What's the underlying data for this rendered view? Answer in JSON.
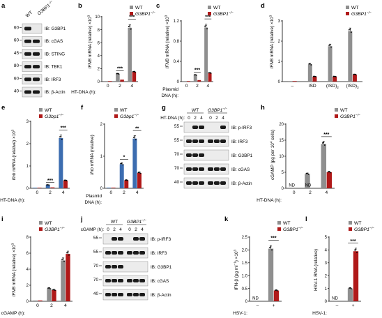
{
  "colors": {
    "wt": "#8f8f8f",
    "ko": "#b01919",
    "blue": "#3c6db0",
    "darkred": "#b01919",
    "axis": "#000000"
  },
  "legend": {
    "wt": "WT",
    "ko": "G3BP1",
    "ko_mouse": "G3bp1"
  },
  "sup": "−/−",
  "sig": {
    "s1": "*",
    "s2": "**",
    "s3": "***"
  },
  "nd": "ND",
  "panels": {
    "a": {
      "letter": "a",
      "header_wt": "WT",
      "header_ko": "G3BP1",
      "rows": [
        {
          "mw": "60",
          "label": "IB: G3BP1"
        },
        {
          "mw": "60",
          "label": "IB: cGAS"
        },
        {
          "mw": "45",
          "label": "IB: STING"
        },
        {
          "mw": "80",
          "label": "IB: TBK1"
        },
        {
          "mw": "60",
          "label": "IB: IRF3"
        },
        {
          "mw": "40",
          "label": "IB: β-Actin"
        }
      ]
    },
    "b": {
      "letter": "b",
      "ylabel": "IFNB mRNA (relative) ×10",
      "ylabel_exp": "3",
      "yticks": [
        "0",
        "2",
        "4",
        "6",
        "8",
        "10"
      ],
      "xlabel": "HT-DNA (h):",
      "cats": [
        "0",
        "2",
        "4"
      ]
    },
    "c": {
      "letter": "c",
      "ylabel": "IFNB mRNA (relative) ×10",
      "ylabel_exp": "3",
      "yticks": [
        "0",
        "0.4",
        "0.8",
        "1.2"
      ],
      "xlabel_1": "Plasmid",
      "xlabel_2": "DNA (h):",
      "cats": [
        "0",
        "2",
        "4"
      ]
    },
    "d": {
      "letter": "d",
      "ylabel": "IFNB mRNA (relative) ×10",
      "ylabel_exp": "3",
      "yticks": [
        "0",
        "1",
        "2",
        "3"
      ],
      "cats": [
        "–",
        "ISD",
        "(ISD)",
        "(ISD)"
      ],
      "subs": [
        "",
        "",
        "2",
        "3"
      ]
    },
    "e": {
      "letter": "e",
      "ylabel": "Ifnb mRNA (relative) ×10",
      "ylabel_exp": "3",
      "yticks": [
        "0",
        "1",
        "2",
        "3"
      ],
      "xlabel": "HT-DNA (h):",
      "cats": [
        "0",
        "2",
        "4"
      ]
    },
    "f": {
      "letter": "f",
      "ylabel": "Ifnb mRNA (relative)",
      "yticks": [
        "0",
        "1",
        "2"
      ],
      "xlabel_1": "Plasmid",
      "xlabel_2": "DNA (h):",
      "cats": [
        "0",
        "2",
        "4"
      ]
    },
    "g": {
      "letter": "g",
      "header_wt": "WT",
      "header_ko": "G3BP1",
      "time_label": "HT-DNA (h):",
      "times": [
        "0",
        "2",
        "4",
        "0",
        "2",
        "4"
      ],
      "rows": [
        {
          "mw": "55",
          "label": "IB: p-IRF3"
        },
        {
          "mw": "55",
          "label": "IB: IRF3"
        },
        {
          "mw": "70",
          "label": "IB: G3BP1"
        },
        {
          "mw": "70",
          "label": "IB: cGAS"
        },
        {
          "mw": "40",
          "label": "IB: β-Actin"
        }
      ]
    },
    "h": {
      "letter": "h",
      "ylabel": "cGAMP (pg per 10",
      "ylabel_exp": "4",
      "ylabel_tail": " cells)",
      "yticks": [
        "0",
        "5",
        "10",
        "15",
        "20"
      ],
      "xlabel": "HT-DNA (h):",
      "cats": [
        "0",
        "2",
        "4"
      ]
    },
    "i": {
      "letter": "i",
      "ylabel": "IFNB mRNA (relative) ×10",
      "ylabel_exp": "3",
      "yticks": [
        "0",
        "2",
        "4",
        "6",
        "8"
      ],
      "xlabel": "cGAMP (h):",
      "cats": [
        "0",
        "2",
        "4"
      ]
    },
    "j": {
      "letter": "j",
      "header_wt": "WT",
      "header_ko": "G3BP1",
      "time_label": "cGAMP (h):",
      "times": [
        "0",
        "2",
        "4",
        "0",
        "2",
        "4"
      ],
      "rows": [
        {
          "mw": "55",
          "label": "IB: p-IRF3"
        },
        {
          "mw": "55",
          "label": "IB: IRF3"
        },
        {
          "mw": "70",
          "label": "IB: G3BP1"
        },
        {
          "mw": "70",
          "label": "IB: cGAS"
        },
        {
          "mw": "40",
          "label": "IB: β-Actin"
        }
      ]
    },
    "k": {
      "letter": "k",
      "ylabel": "IFN-β (pg ml",
      "ylabel_exp": "−1",
      "ylabel_tail": ") ×10",
      "ylabel_exp2": "3",
      "yticks": [
        "0",
        "0.5",
        "1.0",
        "1.5",
        "2.0",
        "2.5"
      ],
      "xlabel": "HSV-1:",
      "cats": [
        "–",
        "+"
      ]
    },
    "l": {
      "letter": "l",
      "ylabel": "HSV-1 RNA (relative)",
      "yticks": [
        "0",
        "1",
        "2",
        "3",
        "4",
        "5"
      ],
      "xlabel": "HSV-1:",
      "cats": [
        "–",
        "+"
      ]
    }
  },
  "chart_data": [
    {
      "panel": "b",
      "type": "bar",
      "categories": [
        "0",
        "2",
        "4"
      ],
      "ylim": [
        0,
        10
      ],
      "series": [
        {
          "name": "WT",
          "values": [
            0.05,
            1.2,
            8.3
          ]
        },
        {
          "name": "G3BP1−/−",
          "values": [
            0.05,
            0.3,
            1.5
          ]
        }
      ]
    },
    {
      "panel": "c",
      "type": "bar",
      "categories": [
        "0",
        "2",
        "4"
      ],
      "ylim": [
        0,
        1.2
      ],
      "series": [
        {
          "name": "WT",
          "values": [
            0.01,
            0.13,
            1.07
          ]
        },
        {
          "name": "G3BP1−/−",
          "values": [
            0.01,
            0.03,
            0.17
          ]
        }
      ]
    },
    {
      "panel": "d",
      "type": "bar",
      "categories": [
        "–",
        "ISD",
        "(ISD)2",
        "(ISD)3"
      ],
      "ylim": [
        0,
        3
      ],
      "series": [
        {
          "name": "WT",
          "values": [
            0.02,
            0.85,
            1.75,
            2.5
          ]
        },
        {
          "name": "G3BP1−/−",
          "values": [
            0.02,
            0.25,
            0.25,
            0.35
          ]
        }
      ]
    },
    {
      "panel": "e",
      "type": "bar",
      "categories": [
        "0",
        "2",
        "4"
      ],
      "ylim": [
        0,
        3
      ],
      "series": [
        {
          "name": "WT",
          "values": [
            0.02,
            0.15,
            2.25
          ]
        },
        {
          "name": "G3bp1−/−",
          "values": [
            0.02,
            0.04,
            0.35
          ]
        }
      ]
    },
    {
      "panel": "f",
      "type": "bar",
      "categories": [
        "0",
        "2",
        "4"
      ],
      "ylim": [
        0,
        2
      ],
      "series": [
        {
          "name": "WT",
          "values": [
            0.02,
            0.75,
            1.55
          ]
        },
        {
          "name": "G3bp1−/−",
          "values": [
            0.02,
            0.25,
            0.48
          ]
        }
      ]
    },
    {
      "panel": "h",
      "type": "bar",
      "categories": [
        "0",
        "2",
        "4"
      ],
      "ylim": [
        0,
        20
      ],
      "series": [
        {
          "name": "WT",
          "values": [
            0,
            4.5,
            13.8
          ]
        },
        {
          "name": "G3BP1−/−",
          "values": [
            0,
            0,
            5.0
          ]
        }
      ]
    },
    {
      "panel": "i",
      "type": "bar",
      "categories": [
        "0",
        "2",
        "4"
      ],
      "ylim": [
        0,
        8
      ],
      "series": [
        {
          "name": "WT",
          "values": [
            0.1,
            1.6,
            5.1
          ]
        },
        {
          "name": "G3BP1−/−",
          "values": [
            0.1,
            1.4,
            5.9
          ]
        }
      ]
    },
    {
      "panel": "k",
      "type": "bar",
      "categories": [
        "–",
        "+"
      ],
      "ylim": [
        0,
        2.5
      ],
      "series": [
        {
          "name": "WT",
          "values": [
            0,
            2.05
          ]
        },
        {
          "name": "G3BP1−/−",
          "values": [
            0,
            0.42
          ]
        }
      ]
    },
    {
      "panel": "l",
      "type": "bar",
      "categories": [
        "–",
        "+"
      ],
      "ylim": [
        0,
        5
      ],
      "series": [
        {
          "name": "WT",
          "values": [
            0,
            1.0
          ]
        },
        {
          "name": "G3BP1−/−",
          "values": [
            0,
            3.9
          ]
        }
      ]
    }
  ]
}
